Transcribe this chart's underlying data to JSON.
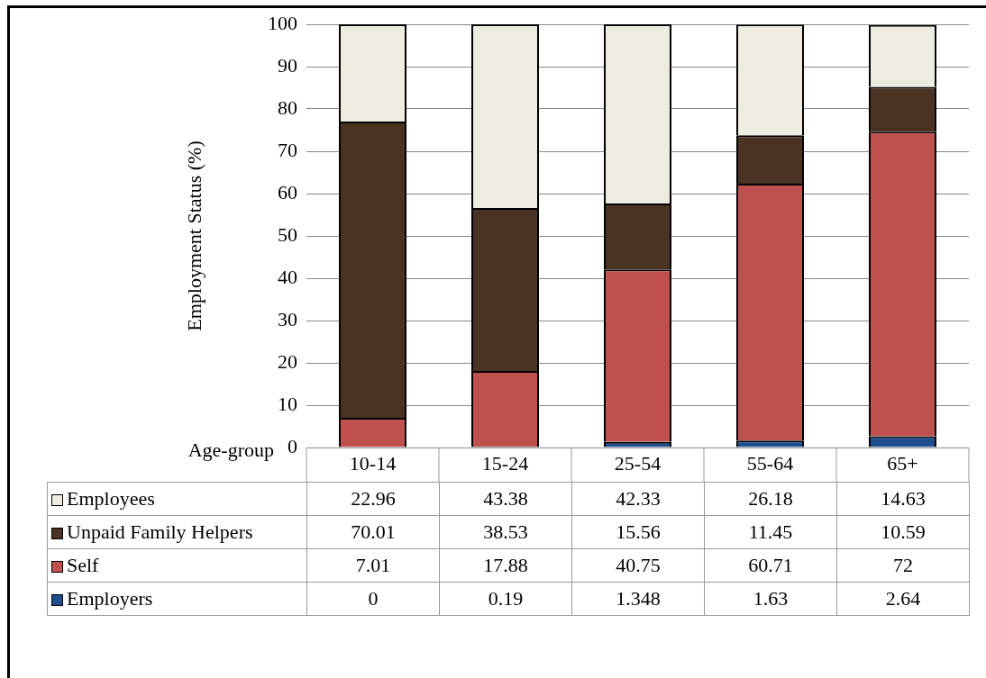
{
  "chart_data": {
    "type": "bar",
    "stacked": true,
    "xlabel": "Age-group",
    "ylabel": "Employment Status (%)",
    "categories": [
      "10-14",
      "15-24",
      "25-54",
      "55-64",
      "65+"
    ],
    "series": [
      {
        "name": "Employers",
        "color": "#1f4e8c",
        "values": [
          0,
          0.19,
          1.348,
          1.63,
          2.64
        ]
      },
      {
        "name": "Self",
        "color": "#c0504d",
        "values": [
          7.01,
          17.88,
          40.75,
          60.71,
          72
        ]
      },
      {
        "name": "Unpaid Family Helpers",
        "color": "#4a3322",
        "values": [
          70.01,
          38.53,
          15.56,
          11.45,
          10.59
        ]
      },
      {
        "name": "Employees",
        "color": "#eeece1",
        "values": [
          22.96,
          43.38,
          42.33,
          26.18,
          14.63
        ]
      }
    ],
    "ylim": [
      0,
      100
    ],
    "yticks": [
      0,
      10,
      20,
      30,
      40,
      50,
      60,
      70,
      80,
      90,
      100
    ],
    "grid": "y",
    "legend": "bottom left",
    "data_labels": true
  }
}
